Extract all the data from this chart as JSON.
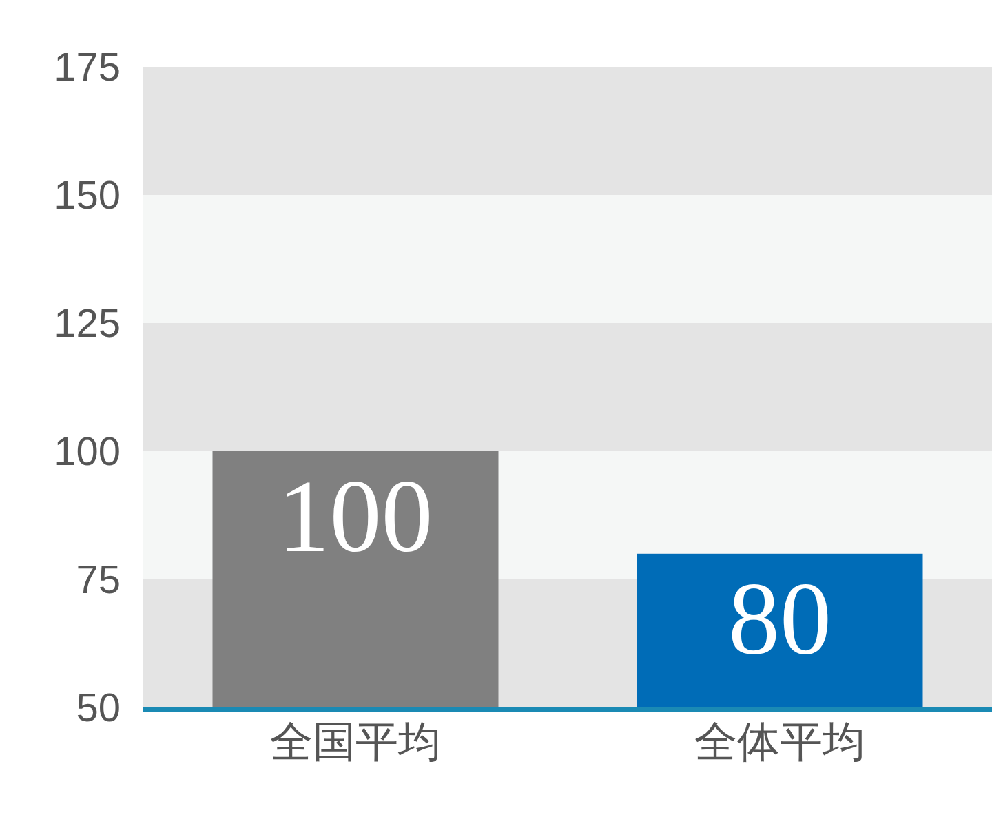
{
  "chart_data": {
    "type": "bar",
    "categories": [
      "全国平均",
      "全体平均"
    ],
    "values": [
      100,
      80
    ],
    "colors": [
      "#808080",
      "#006cb7"
    ],
    "ylim": [
      50,
      175
    ],
    "yticks": [
      50,
      75,
      100,
      125,
      150,
      175
    ],
    "bands": [
      {
        "axis": "y",
        "from": 50,
        "to": 75,
        "color": "#e4e4e4"
      },
      {
        "axis": "y",
        "from": 75,
        "to": 100,
        "color": "#f5f7f6"
      },
      {
        "axis": "y",
        "from": 100,
        "to": 125,
        "color": "#e4e4e4"
      },
      {
        "axis": "y",
        "from": 125,
        "to": 150,
        "color": "#f5f7f6"
      },
      {
        "axis": "y",
        "from": 150,
        "to": 175,
        "color": "#e4e4e4"
      }
    ],
    "data_labels": true
  }
}
